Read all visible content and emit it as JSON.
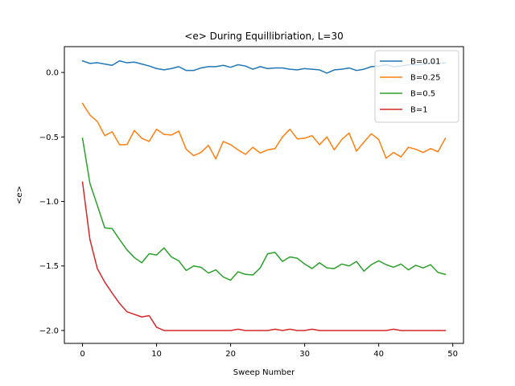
{
  "chart_data": {
    "type": "line",
    "title": "<e> During Equillibriation, L=30",
    "xlabel": "Sweep Number",
    "ylabel": "<e>",
    "xlim": [
      -2.45,
      51.45
    ],
    "ylim": [
      -2.1,
      0.2
    ],
    "xticks": [
      0,
      10,
      20,
      30,
      40,
      50
    ],
    "yticks": [
      0.0,
      -0.5,
      -1.0,
      -1.5,
      -2.0
    ],
    "xtick_labels": [
      "0",
      "10",
      "20",
      "30",
      "40",
      "50"
    ],
    "ytick_labels": [
      "0.0",
      "−0.5",
      "−1.0",
      "−1.5",
      "−2.0"
    ],
    "grid": false,
    "legend_position": "top-right",
    "x": [
      0,
      1,
      2,
      3,
      4,
      5,
      6,
      7,
      8,
      9,
      10,
      11,
      12,
      13,
      14,
      15,
      16,
      17,
      18,
      19,
      20,
      21,
      22,
      23,
      24,
      25,
      26,
      27,
      28,
      29,
      30,
      31,
      32,
      33,
      34,
      35,
      36,
      37,
      38,
      39,
      40,
      41,
      42,
      43,
      44,
      45,
      46,
      47,
      48,
      49
    ],
    "series": [
      {
        "name": "B=0.01",
        "color": "#1f77b4",
        "values": [
          0.09,
          0.07,
          0.075,
          0.065,
          0.055,
          0.09,
          0.075,
          0.08,
          0.065,
          0.05,
          0.03,
          0.02,
          0.03,
          0.045,
          0.015,
          0.015,
          0.035,
          0.045,
          0.045,
          0.055,
          0.04,
          0.06,
          0.05,
          0.025,
          0.045,
          0.03,
          0.035,
          0.035,
          0.025,
          0.02,
          0.03,
          0.025,
          0.02,
          -0.005,
          0.02,
          0.025,
          0.035,
          0.015,
          0.025,
          0.045,
          0.05,
          0.06,
          0.045,
          0.05,
          0.06,
          0.06,
          0.065,
          0.07,
          0.07,
          0.075
        ]
      },
      {
        "name": "B=0.25",
        "color": "#ff7f0e",
        "values": [
          -0.24,
          -0.33,
          -0.38,
          -0.49,
          -0.46,
          -0.56,
          -0.56,
          -0.45,
          -0.51,
          -0.535,
          -0.44,
          -0.48,
          -0.485,
          -0.455,
          -0.595,
          -0.645,
          -0.62,
          -0.565,
          -0.67,
          -0.535,
          -0.56,
          -0.6,
          -0.635,
          -0.58,
          -0.625,
          -0.6,
          -0.59,
          -0.5,
          -0.44,
          -0.515,
          -0.51,
          -0.49,
          -0.56,
          -0.5,
          -0.6,
          -0.52,
          -0.47,
          -0.61,
          -0.54,
          -0.475,
          -0.52,
          -0.665,
          -0.62,
          -0.655,
          -0.58,
          -0.595,
          -0.62,
          -0.59,
          -0.615,
          -0.51
        ]
      },
      {
        "name": "B=0.5",
        "color": "#2ca02c",
        "values": [
          -0.51,
          -0.86,
          -1.03,
          -1.205,
          -1.21,
          -1.295,
          -1.375,
          -1.435,
          -1.475,
          -1.405,
          -1.415,
          -1.36,
          -1.43,
          -1.46,
          -1.535,
          -1.5,
          -1.51,
          -1.555,
          -1.53,
          -1.585,
          -1.61,
          -1.545,
          -1.565,
          -1.57,
          -1.515,
          -1.405,
          -1.395,
          -1.465,
          -1.43,
          -1.44,
          -1.485,
          -1.52,
          -1.475,
          -1.515,
          -1.52,
          -1.485,
          -1.5,
          -1.465,
          -1.54,
          -1.49,
          -1.46,
          -1.49,
          -1.51,
          -1.485,
          -1.53,
          -1.495,
          -1.515,
          -1.49,
          -1.55,
          -1.565
        ]
      },
      {
        "name": "B=1",
        "color": "#d62728",
        "values": [
          -0.85,
          -1.295,
          -1.52,
          -1.625,
          -1.71,
          -1.79,
          -1.855,
          -1.875,
          -1.895,
          -1.885,
          -1.975,
          -2.0,
          -2.0,
          -2.0,
          -2.0,
          -2.0,
          -2.0,
          -2.0,
          -2.0,
          -2.0,
          -2.0,
          -1.99,
          -2.0,
          -2.0,
          -2.0,
          -2.0,
          -1.99,
          -2.0,
          -1.99,
          -2.0,
          -2.0,
          -1.99,
          -2.0,
          -2.0,
          -2.0,
          -2.0,
          -2.0,
          -2.0,
          -2.0,
          -2.0,
          -2.0,
          -2.0,
          -1.99,
          -2.0,
          -2.0,
          -2.0,
          -2.0,
          -2.0,
          -2.0,
          -2.0
        ]
      }
    ]
  }
}
